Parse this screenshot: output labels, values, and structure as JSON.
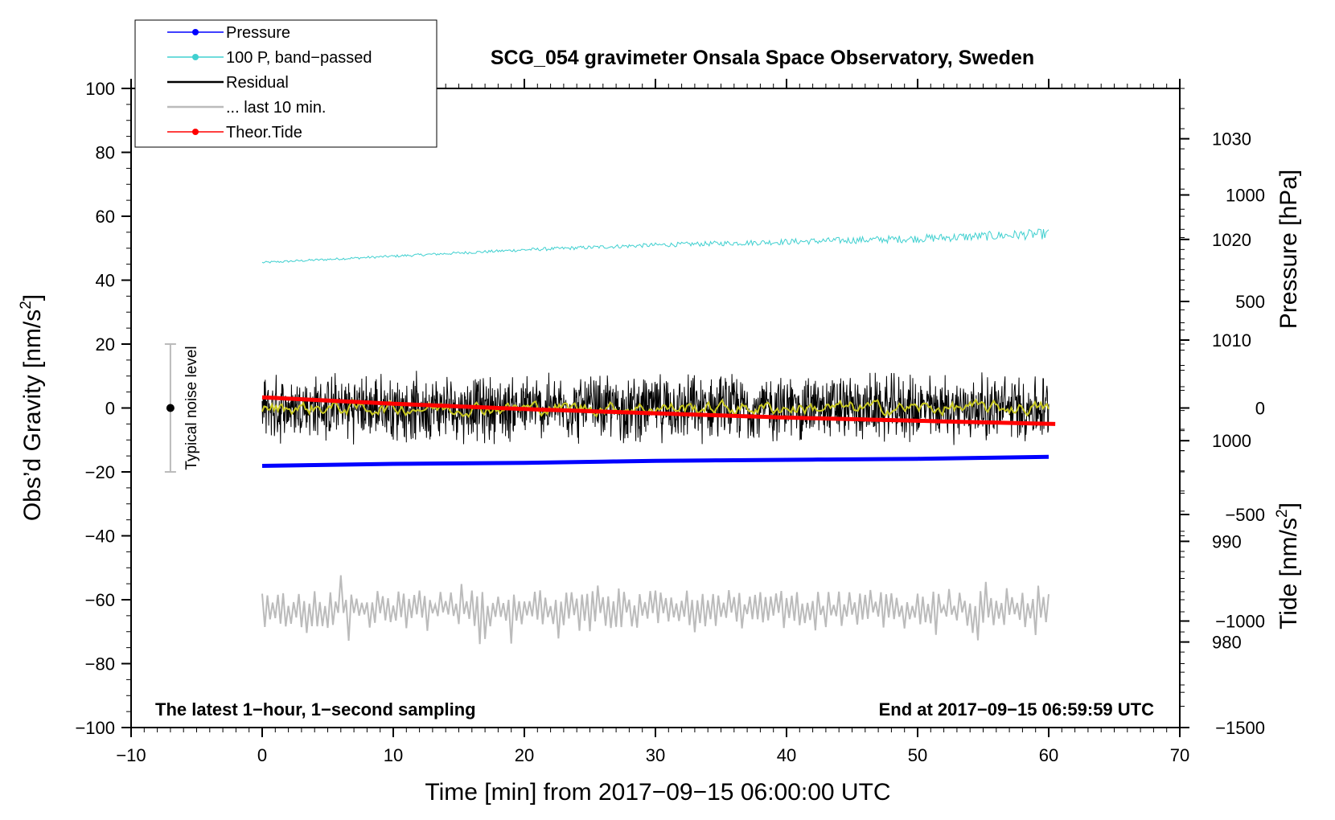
{
  "chart_data": {
    "type": "line",
    "title": "SCG_054 gravimeter Onsala Space Observatory, Sweden",
    "xlabel": "Time [min] from 2017−09−15 06:00:00 UTC",
    "ylabel_left_text": "Obs’d Gravity [nm/s",
    "ylabel_left_sup": "2",
    "ylabel_left_close": "]",
    "ylabel_right_pressure": "Pressure [hPa]",
    "ylabel_right_tide_text": "Tide [nm/s",
    "ylabel_right_tide_sup": "2",
    "ylabel_right_tide_close": "]",
    "note_left": "The latest 1−hour, 1−second sampling",
    "note_right": "End at 2017−09−15 06:59:59 UTC",
    "noise_label": "Typical noise level",
    "xlim": [
      -10,
      70
    ],
    "ylim": [
      -100,
      100
    ],
    "pressure_axis_range": [
      971.5,
      1035
    ],
    "tide_axis_range": [
      -1500,
      1500
    ],
    "x_ticks": [
      {
        "value": -10,
        "label": "−10"
      },
      {
        "value": 0,
        "label": "0"
      },
      {
        "value": 10,
        "label": "10"
      },
      {
        "value": 20,
        "label": "20"
      },
      {
        "value": 30,
        "label": "30"
      },
      {
        "value": 40,
        "label": "40"
      },
      {
        "value": 50,
        "label": "50"
      },
      {
        "value": 60,
        "label": "60"
      },
      {
        "value": 70,
        "label": "70"
      }
    ],
    "y_ticks_left": [
      {
        "value": 100,
        "label": "100"
      },
      {
        "value": 80,
        "label": "80"
      },
      {
        "value": 60,
        "label": "60"
      },
      {
        "value": 40,
        "label": "40"
      },
      {
        "value": 20,
        "label": "20"
      },
      {
        "value": 0,
        "label": "0"
      },
      {
        "value": -20,
        "label": "−20"
      },
      {
        "value": -40,
        "label": "−40"
      },
      {
        "value": -60,
        "label": "−60"
      },
      {
        "value": -80,
        "label": "−80"
      },
      {
        "value": -100,
        "label": "−100"
      }
    ],
    "pressure_ticks": [
      {
        "value": 1030,
        "label": "1030"
      },
      {
        "value": 1020,
        "label": "1020"
      },
      {
        "value": 1010,
        "label": "1010"
      },
      {
        "value": 1000,
        "label": "1000"
      },
      {
        "value": 990,
        "label": "990"
      },
      {
        "value": 980,
        "label": "980"
      }
    ],
    "tide_ticks": [
      {
        "value": 1000,
        "label": "1000"
      },
      {
        "value": 500,
        "label": "500"
      },
      {
        "value": 0,
        "label": "0"
      },
      {
        "value": -500,
        "label": "−500"
      },
      {
        "value": -1000,
        "label": "−1000"
      },
      {
        "value": -1500,
        "label": "−1500"
      }
    ],
    "legend_position": "top-left",
    "legend": [
      {
        "label": "Pressure",
        "color": "#0000ff",
        "marker": true
      },
      {
        "label": "100 P, band−passed",
        "color": "#40d0d0",
        "marker": true
      },
      {
        "label": "Residual",
        "color": "#000000",
        "marker": false
      },
      {
        "label": "... last 10 min.",
        "color": "#bbbbbb",
        "marker": false
      },
      {
        "label": "Theor.Tide",
        "color": "#ff0000",
        "marker": true
      }
    ],
    "series": [
      {
        "name": "Pressure",
        "axis": "pressure",
        "color": "#0000ff",
        "x": [
          0,
          10,
          20,
          30,
          40,
          50,
          60
        ],
        "y": [
          997.5,
          997.7,
          997.8,
          998.0,
          998.1,
          998.2,
          998.4
        ]
      },
      {
        "name": "100 P, band−passed",
        "axis": "left",
        "color": "#40d0d0",
        "x": [
          0,
          10,
          20,
          30,
          40,
          50,
          60
        ],
        "y": [
          45.5,
          47.5,
          49.5,
          51.0,
          52.0,
          53.0,
          54.5
        ]
      },
      {
        "name": "Residual",
        "axis": "left",
        "color": "#000000",
        "x": [
          0,
          60
        ],
        "y": [
          0,
          0
        ],
        "envelope": [
          -12,
          12
        ]
      },
      {
        "name": "Residual (smoothed)",
        "axis": "left",
        "color": "#c8c820",
        "x": [
          0,
          60
        ],
        "y": [
          0,
          0
        ],
        "envelope": [
          -2,
          2
        ]
      },
      {
        "name": "... last 10 min.",
        "axis": "left",
        "color": "#bbbbbb",
        "x": [
          0,
          60
        ],
        "y": [
          -61,
          -61
        ],
        "envelope": [
          -74,
          -52
        ]
      },
      {
        "name": "Theor.Tide",
        "axis": "tide",
        "color": "#ff0000",
        "x": [
          0,
          10,
          20,
          30,
          40,
          50,
          60.5
        ],
        "y": [
          50,
          20,
          -5,
          -25,
          -45,
          -60,
          -75
        ]
      }
    ],
    "noise_bar": {
      "x": -7,
      "center": 0,
      "low": -20,
      "high": 20
    }
  }
}
